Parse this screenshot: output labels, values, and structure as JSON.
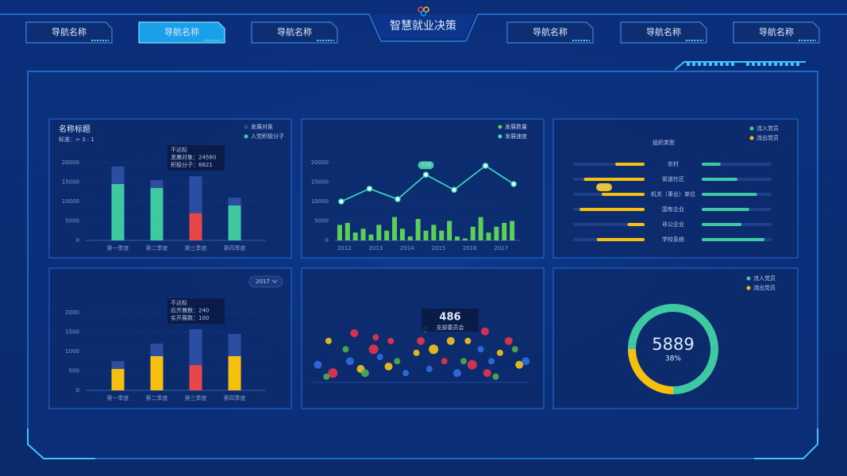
{
  "header": {
    "title": "智慧就业决策",
    "nav": [
      "导航名称",
      "导航名称",
      "导航名称",
      "导航名称",
      "导航名称",
      "导航名称"
    ],
    "active": 1
  },
  "chart_data": [
    {
      "type": "bar",
      "title": "名称标题",
      "subtitle": "标准：> 3 : 1",
      "categories": [
        "第一季度",
        "第二季度",
        "第三季度",
        "第四季度"
      ],
      "series": [
        {
          "name": "入党积极分子",
          "color": "#3ec9a0",
          "colors": [
            "#3ec9a0",
            "#3ec9a0",
            "#e8464a",
            "#3ec9a0"
          ],
          "values": [
            14500,
            13500,
            7000,
            9000
          ]
        },
        {
          "name": "发展对象",
          "color": "#2b4ea0",
          "values": [
            4500,
            2000,
            9500,
            2000
          ]
        }
      ],
      "ylim": [
        0,
        20000
      ],
      "yticks": [
        0,
        5000,
        10000,
        15000,
        20000
      ],
      "grid": true,
      "tooltip": [
        "不达标",
        "发展对象：24560",
        "积极分子：6621"
      ]
    },
    {
      "type": "combo",
      "series": [
        {
          "name": "发展数量",
          "type": "bar",
          "color": "#5ccf5a",
          "x": [
            2011.85,
            2012.1,
            2012.35,
            2012.6,
            2012.85,
            2013.1,
            2013.35,
            2013.6,
            2013.85,
            2014.1,
            2014.35,
            2014.6,
            2014.85,
            2015.1,
            2015.35,
            2015.6,
            2015.85,
            2016.1,
            2016.35,
            2016.6,
            2016.85,
            2017.1,
            2017.35
          ],
          "values": [
            4000,
            4500,
            2000,
            3000,
            1500,
            4000,
            2500,
            6000,
            3000,
            1000,
            5500,
            2500,
            4000,
            2500,
            5000,
            1000,
            500,
            3500,
            6000,
            2000,
            3500,
            4500,
            5000
          ]
        },
        {
          "name": "发展速度",
          "type": "line",
          "color": "#3fe0c0",
          "x": [
            2011.9,
            2012.8,
            2013.7,
            2014.6,
            2015.5,
            2016.5,
            2017.4
          ],
          "values": [
            10000,
            13300,
            10600,
            16900,
            13000,
            19200,
            14500
          ]
        }
      ],
      "xlim": [
        2011.7,
        2017.6
      ],
      "xticks": [
        2012,
        2013,
        2014,
        2015,
        2016,
        2017
      ],
      "ylim": [
        0,
        20000
      ],
      "yticks": [
        0,
        5000,
        10000,
        15000,
        20000
      ],
      "grid": true,
      "annotation": "336"
    },
    {
      "type": "diverging",
      "title": "组织类型",
      "categories": [
        "农村",
        "街道社区",
        "机关（事业）单位",
        "国有企业",
        "非公企业",
        "学校系统"
      ],
      "series": [
        {
          "name": "流入党员",
          "color": "#3ec9a0",
          "values": [
            27,
            51,
            79,
            68,
            57,
            90
          ]
        },
        {
          "name": "流出党员",
          "color": "#f5c010",
          "values": [
            41,
            85,
            60,
            91,
            24,
            67
          ]
        }
      ],
      "xlim": [
        0,
        100
      ],
      "annotation": "38%"
    },
    {
      "type": "bar",
      "dropdown": "2017",
      "categories": [
        "第一季度",
        "第二季度",
        "第三季度",
        "第四季度"
      ],
      "series": [
        {
          "color": "#f5c010",
          "colors": [
            "#f5c010",
            "#f5c010",
            "#e8464a",
            "#f5c010"
          ],
          "values": [
            550,
            880,
            650,
            880
          ]
        },
        {
          "color": "#2b4ea0",
          "values": [
            200,
            320,
            920,
            570
          ]
        }
      ],
      "ylim": [
        0,
        2000
      ],
      "yticks": [
        0,
        500,
        1000,
        1500,
        2000
      ],
      "grid": true,
      "tooltip": [
        "不达标",
        "应开展数：240",
        "实开展数：100"
      ]
    },
    {
      "type": "scatter",
      "annotation": {
        "value": 486,
        "label": "支部委员会"
      },
      "xlim": [
        0,
        100
      ],
      "ylim": [
        0,
        100
      ],
      "series": [
        {
          "color": "#e8344a",
          "x": [
            9,
            19,
            28,
            36,
            50,
            61,
            74,
            81,
            91,
            80,
            29
          ],
          "y": [
            13,
            80,
            53,
            67,
            67,
            33,
            27,
            13,
            67,
            83,
            73
          ],
          "sizes": [
            6,
            5,
            6,
            4,
            5,
            4,
            6,
            5,
            5,
            5,
            4
          ]
        },
        {
          "color": "#f5c518",
          "x": [
            7,
            22,
            35,
            48,
            56,
            64,
            87,
            96,
            72
          ],
          "y": [
            67,
            20,
            24,
            47,
            53,
            67,
            47,
            27,
            67
          ],
          "sizes": [
            4,
            5,
            5,
            4,
            6,
            5,
            4,
            5,
            4
          ]
        },
        {
          "color": "#2f6fe0",
          "x": [
            2,
            17,
            31,
            43,
            67,
            83,
            99,
            54,
            78
          ],
          "y": [
            27,
            33,
            40,
            13,
            13,
            33,
            33,
            20,
            53
          ],
          "sizes": [
            5,
            5,
            4,
            4,
            5,
            4,
            5,
            4,
            4
          ]
        },
        {
          "color": "#4caf50",
          "x": [
            6,
            15,
            24,
            39,
            52,
            70,
            85,
            94
          ],
          "y": [
            7,
            53,
            13,
            33,
            87,
            33,
            7,
            53
          ],
          "sizes": [
            4,
            4,
            5,
            4,
            4,
            4,
            4,
            4
          ]
        }
      ]
    },
    {
      "type": "donut",
      "categories": [
        "流入党员",
        "流出党员"
      ],
      "values": [
        75,
        25
      ],
      "colors": [
        "#3ec9a0",
        "#f5c010"
      ],
      "center_value": 5889,
      "center_label": "38%"
    }
  ]
}
